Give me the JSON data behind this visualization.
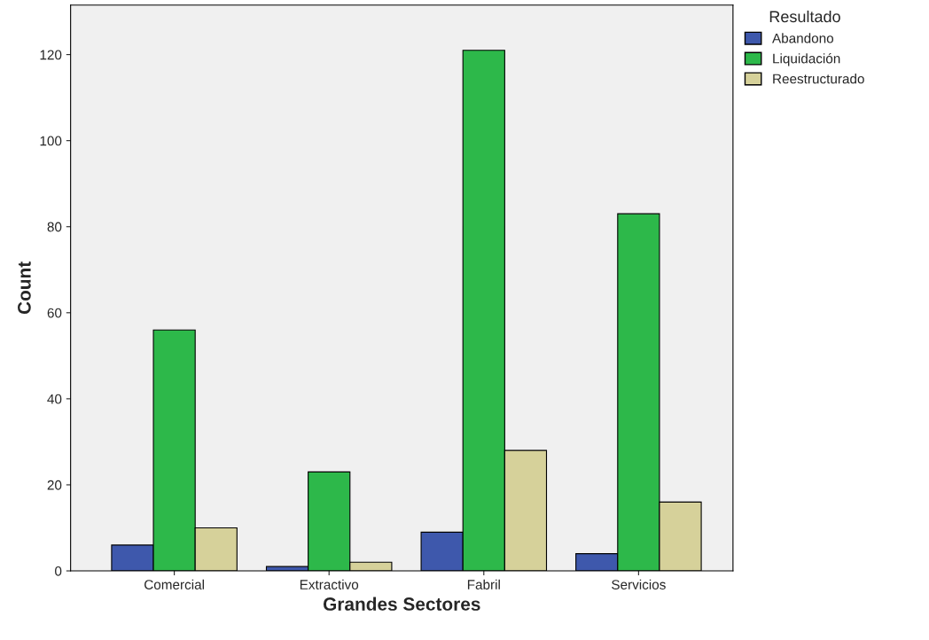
{
  "chart_data": {
    "type": "bar",
    "xlabel": "Grandes Sectores",
    "ylabel": "Count",
    "legend_title": "Resultado",
    "categories": [
      "Comercial",
      "Extractivo",
      "Fabril",
      "Servicios"
    ],
    "series": [
      {
        "name": "Abandono",
        "color": "#3e58ac",
        "values": [
          6,
          1,
          9,
          4
        ]
      },
      {
        "name": "Liquidación",
        "color": "#2db84a",
        "values": [
          56,
          23,
          121,
          83
        ]
      },
      {
        "name": "Reestructurado",
        "color": "#d6d19a",
        "values": [
          10,
          2,
          28,
          16
        ]
      }
    ],
    "ylim": [
      0,
      131.5
    ],
    "yticks": [
      0,
      20,
      40,
      60,
      80,
      100,
      120
    ],
    "grid": false,
    "legend": "top right"
  }
}
